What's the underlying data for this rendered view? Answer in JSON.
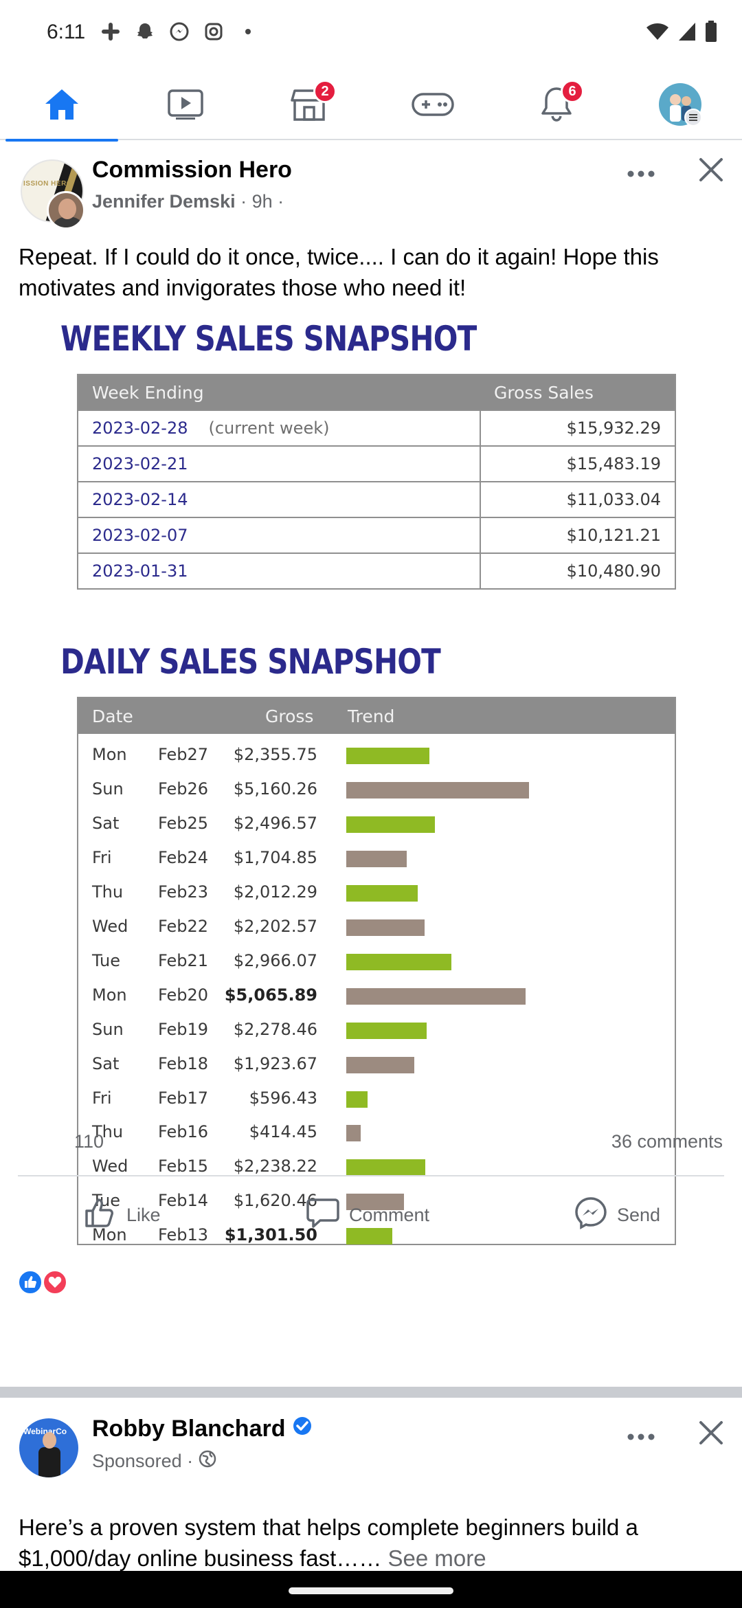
{
  "status_bar": {
    "time": "6:11",
    "left_icons": [
      "slack-icon",
      "snapchat-icon",
      "messenger-icon",
      "instagram-icon",
      "dot-icon"
    ],
    "right_icons": [
      "wifi-icon",
      "signal-icon",
      "battery-icon"
    ]
  },
  "tabs": [
    {
      "name": "home",
      "icon": "home-icon",
      "active": true,
      "badge": ""
    },
    {
      "name": "watch",
      "icon": "video-icon",
      "active": false,
      "badge": ""
    },
    {
      "name": "marketplace",
      "icon": "store-icon",
      "active": false,
      "badge": "2"
    },
    {
      "name": "gaming",
      "icon": "gamepad-icon",
      "active": false,
      "badge": ""
    },
    {
      "name": "notifications",
      "icon": "bell-icon",
      "active": false,
      "badge": "6"
    },
    {
      "name": "profile",
      "icon": "avatar-menu-icon",
      "active": false,
      "badge": ""
    }
  ],
  "post": {
    "page_name": "Commission Hero",
    "author": "Jennifer Demski",
    "time": "9h",
    "text": "Repeat. If I could do it once, twice.... I can do it again! Hope this motivates and invigorates those who need it!",
    "image": {
      "weekly_title": "WEEKLY SALES SNAPSHOT",
      "weekly_headers": [
        "Week Ending",
        "Gross Sales"
      ],
      "weekly_rows": [
        {
          "week": "2023-02-28",
          "note": "(current week)",
          "gross": "$15,932.29"
        },
        {
          "week": "2023-02-21",
          "note": "",
          "gross": "$15,483.19"
        },
        {
          "week": "2023-02-14",
          "note": "",
          "gross": "$11,033.04"
        },
        {
          "week": "2023-02-07",
          "note": "",
          "gross": "$10,121.21"
        },
        {
          "week": "2023-01-31",
          "note": "",
          "gross": "$10,480.90"
        }
      ],
      "daily_title": "DAILY SALES SNAPSHOT",
      "daily_headers": [
        "Date",
        "Gross",
        "Trend"
      ],
      "daily_rows": [
        {
          "day": "Mon",
          "date": "Feb27",
          "gross": "$2,355.75",
          "value": 2355.75,
          "color": "#8fba24",
          "bold": false
        },
        {
          "day": "Sun",
          "date": "Feb26",
          "gross": "$5,160.26",
          "value": 5160.26,
          "color": "#9c8b80",
          "bold": false
        },
        {
          "day": "Sat",
          "date": "Feb25",
          "gross": "$2,496.57",
          "value": 2496.57,
          "color": "#8fba24",
          "bold": false
        },
        {
          "day": "Fri",
          "date": "Feb24",
          "gross": "$1,704.85",
          "value": 1704.85,
          "color": "#9c8b80",
          "bold": false
        },
        {
          "day": "Thu",
          "date": "Feb23",
          "gross": "$2,012.29",
          "value": 2012.29,
          "color": "#8fba24",
          "bold": false
        },
        {
          "day": "Wed",
          "date": "Feb22",
          "gross": "$2,202.57",
          "value": 2202.57,
          "color": "#9c8b80",
          "bold": false
        },
        {
          "day": "Tue",
          "date": "Feb21",
          "gross": "$2,966.07",
          "value": 2966.07,
          "color": "#8fba24",
          "bold": false
        },
        {
          "day": "Mon",
          "date": "Feb20",
          "gross": "$5,065.89",
          "value": 5065.89,
          "color": "#9c8b80",
          "bold": true
        },
        {
          "day": "Sun",
          "date": "Feb19",
          "gross": "$2,278.46",
          "value": 2278.46,
          "color": "#8fba24",
          "bold": false
        },
        {
          "day": "Sat",
          "date": "Feb18",
          "gross": "$1,923.67",
          "value": 1923.67,
          "color": "#9c8b80",
          "bold": false
        },
        {
          "day": "Fri",
          "date": "Feb17",
          "gross": "$596.43",
          "value": 596.43,
          "color": "#8fba24",
          "bold": false
        },
        {
          "day": "Thu",
          "date": "Feb16",
          "gross": "$414.45",
          "value": 414.45,
          "color": "#9c8b80",
          "bold": false
        },
        {
          "day": "Wed",
          "date": "Feb15",
          "gross": "$2,238.22",
          "value": 2238.22,
          "color": "#8fba24",
          "bold": false
        },
        {
          "day": "Tue",
          "date": "Feb14",
          "gross": "$1,620.46",
          "value": 1620.46,
          "color": "#9c8b80",
          "bold": false
        },
        {
          "day": "Mon",
          "date": "Feb13",
          "gross": "$1,301.50",
          "value": 1301.5,
          "color": "#8fba24",
          "bold": true
        }
      ]
    },
    "reaction_count": "110",
    "comment_count": "36 comments",
    "actions": {
      "like": "Like",
      "comment": "Comment",
      "send": "Send"
    }
  },
  "post2": {
    "name": "Robby Blanchard",
    "sponsored": "Sponsored ·",
    "avatar_text": "WebinarCo",
    "text": "Here’s a proven system that helps complete beginners build a $1,000/day online business fast……",
    "see_more": "See more"
  },
  "colors": {
    "accent": "#1877f2",
    "badge": "#e41e3f",
    "title_blue": "#2b2a8c",
    "bar_green": "#8fba24",
    "bar_taupe": "#9c8b80"
  }
}
